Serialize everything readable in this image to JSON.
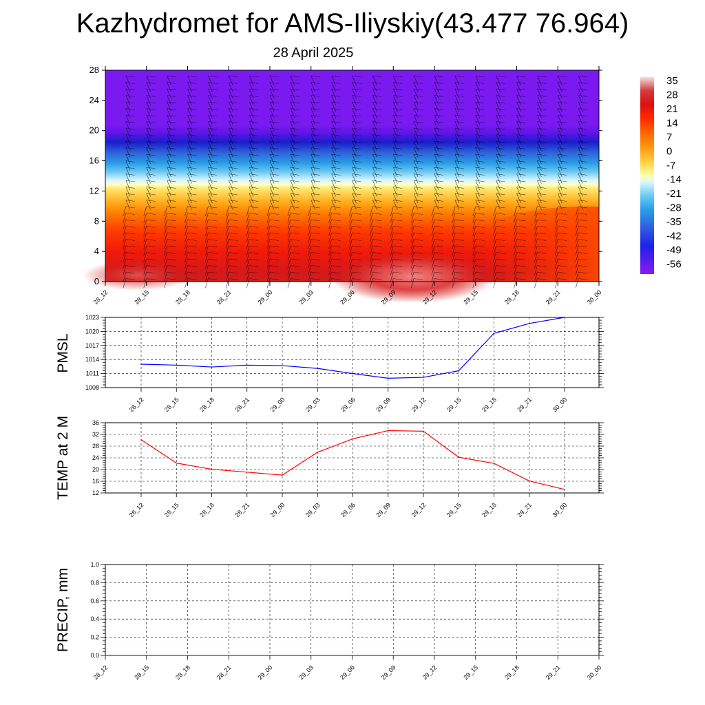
{
  "title": "Kazhydromet for AMS-Iliyskiy(43.477 76.964)",
  "subtitle": "28 April 2025",
  "colors": {
    "pmsl_line": "#0000ff",
    "temp_line": "#ff0000",
    "precip_line": "#007700"
  },
  "chart_data": [
    {
      "type": "heatmap",
      "name": "cross-section",
      "x_categories": [
        "28_12",
        "28_15",
        "28_18",
        "28_21",
        "29_00",
        "29_03",
        "29_06",
        "29_09",
        "29_12",
        "29_15",
        "29_18",
        "29_21",
        "30_00"
      ],
      "y_ticks": [
        "0",
        "4",
        "8",
        "12",
        "16",
        "20",
        "24",
        "28"
      ],
      "ylim": [
        0,
        28
      ],
      "colorbar_labels": [
        "35",
        "28",
        "21",
        "14",
        "7",
        "0",
        "-7",
        "-14",
        "-21",
        "-28",
        "-35",
        "-42",
        "-49",
        "-56"
      ],
      "colorbar_colors": [
        "#f2d2d2",
        "#d03232",
        "#dd1010",
        "#ff2a00",
        "#ff6a00",
        "#ff9a10",
        "#ffd040",
        "#ffff9a",
        "#e0f8ff",
        "#70ccf5",
        "#2aa0e8",
        "#3060e0",
        "#2020e8",
        "#7818f0"
      ],
      "wind_barbs": "present"
    },
    {
      "type": "line",
      "name": "pmsl",
      "ylabel": "PMSL",
      "x": [
        "28_12",
        "28_15",
        "28_18",
        "28_21",
        "29_00",
        "29_03",
        "29_06",
        "29_09",
        "29_12",
        "29_15",
        "29_18",
        "29_21",
        "30_00"
      ],
      "values": [
        1013.0,
        1012.8,
        1012.4,
        1012.8,
        1012.7,
        1012.1,
        1011.0,
        1010.0,
        1010.2,
        1011.6,
        1019.6,
        1021.7,
        1023.0
      ],
      "ylim": [
        1008,
        1023
      ],
      "y_ticks": [
        "1008",
        "1011",
        "1014",
        "1017",
        "1020",
        "1023"
      ]
    },
    {
      "type": "line",
      "name": "temp",
      "ylabel": "TEMP at 2 M",
      "x": [
        "28_12",
        "28_15",
        "28_18",
        "28_21",
        "29_00",
        "29_03",
        "29_06",
        "29_09",
        "29_12",
        "29_15",
        "29_18",
        "29_21",
        "30_00"
      ],
      "values": [
        30.2,
        22.2,
        20.1,
        19.1,
        18.1,
        25.9,
        30.5,
        33.3,
        33.1,
        24.2,
        22.1,
        16.1,
        13.2
      ],
      "ylim": [
        12,
        36
      ],
      "y_ticks": [
        "12",
        "16",
        "20",
        "24",
        "28",
        "32",
        "36"
      ]
    },
    {
      "type": "line",
      "name": "precip",
      "ylabel": "PRECIP, mm",
      "x": [
        "28_12",
        "28_15",
        "28_18",
        "28_21",
        "29_00",
        "29_03",
        "29_06",
        "29_09",
        "29_12",
        "29_15",
        "29_18",
        "29_21",
        "30_00"
      ],
      "values": [
        0,
        0,
        0,
        0,
        0,
        0,
        0,
        0,
        0,
        0,
        0,
        0,
        0
      ],
      "ylim": [
        0,
        1.0
      ],
      "y_ticks": [
        "0.0",
        "0.2",
        "0.4",
        "0.6",
        "0.8",
        "1.0"
      ]
    }
  ]
}
